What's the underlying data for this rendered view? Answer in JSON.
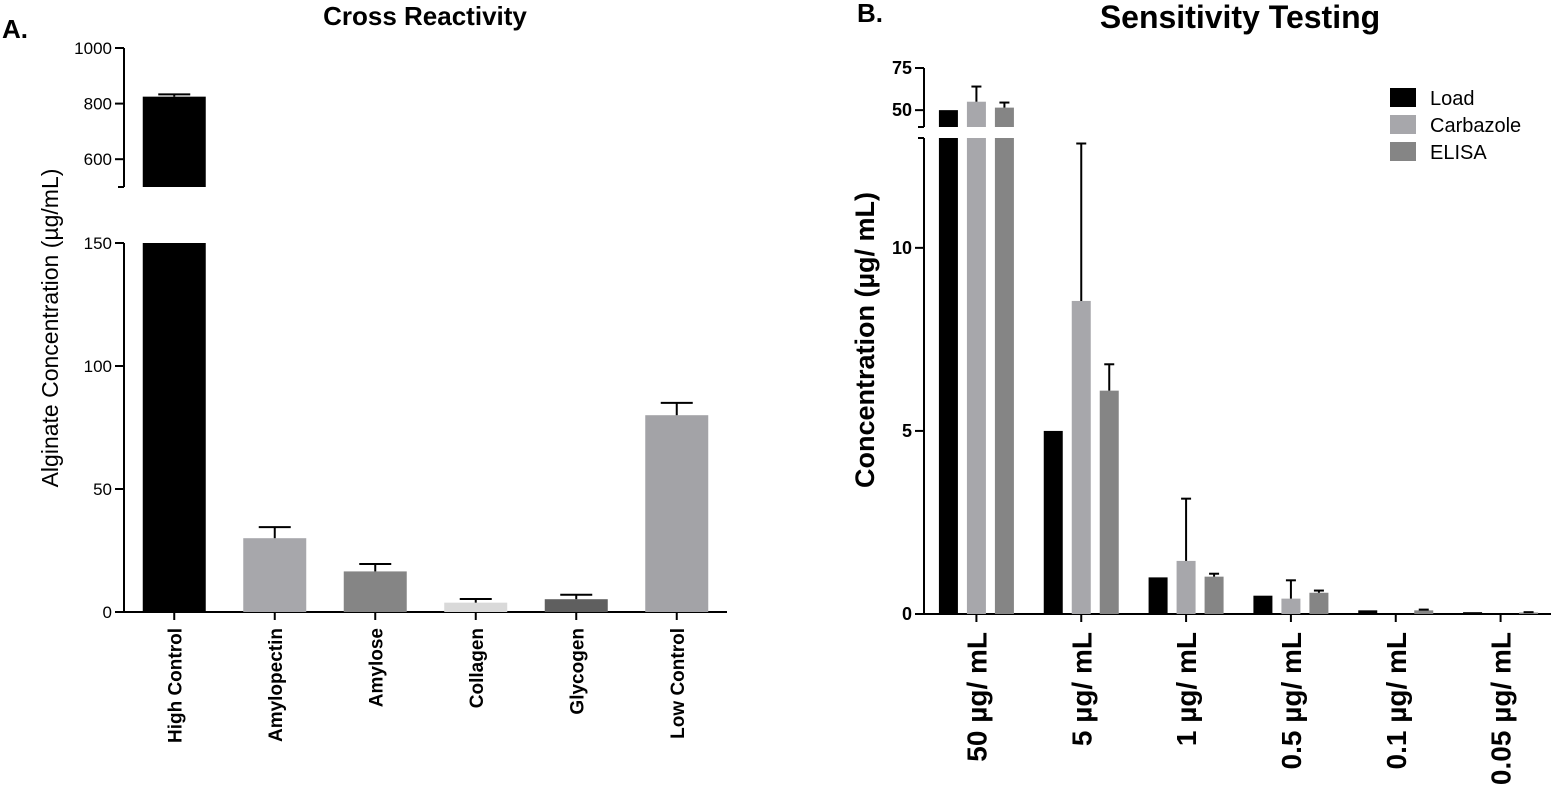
{
  "panel_labels": {
    "a": "A.",
    "b": "B."
  },
  "chart_data": [
    {
      "type": "bar",
      "title": "Cross Reactivity",
      "ylabel": "Alginate Concentration (µg/mL)",
      "xlabel": "",
      "categories": [
        "High Control",
        "Amylopectin",
        "Amylose",
        "Collagen",
        "Glycogen",
        "Low Control"
      ],
      "values": [
        825,
        30,
        16.5,
        3.8,
        5.2,
        80
      ],
      "errors": [
        8,
        4.5,
        3,
        1.5,
        1.8,
        5
      ],
      "colors": [
        "#000000",
        "#a7a7ab",
        "#858585",
        "#d9d9d9",
        "#5f5f5f",
        "#a3a3a7"
      ],
      "y_segments": [
        {
          "range": [
            0,
            150
          ],
          "ticks": [
            0,
            50,
            100,
            150
          ]
        },
        {
          "range": [
            500,
            1000
          ],
          "ticks": [
            600,
            800,
            1000
          ]
        }
      ],
      "ytick_labels": [
        "0",
        "50",
        "100",
        "150",
        "600",
        "800",
        "1000"
      ]
    },
    {
      "type": "bar",
      "title": "Sensitivity Testing",
      "ylabel": "Concentration (µg/ mL)",
      "xlabel": "",
      "categories": [
        "50 µg/ mL",
        "5 µg/ mL",
        "1 µg/ mL",
        "0.5 µg/ mL",
        "0.1 µg/ mL",
        "0.05 µg/ mL"
      ],
      "series": [
        {
          "name": "Load",
          "color": "#000000",
          "values": [
            50,
            5,
            1,
            0.5,
            0.1,
            0.05
          ],
          "errors": [
            0,
            0,
            0,
            0,
            0,
            0
          ]
        },
        {
          "name": "Carbazole",
          "color": "#a7a7ab",
          "values": [
            55,
            8.55,
            1.45,
            0.42,
            0,
            0
          ],
          "errors": [
            9,
            4.3,
            1.7,
            0.5,
            0,
            0
          ]
        },
        {
          "name": "ELISA",
          "color": "#858585",
          "values": [
            51.5,
            6.1,
            1.02,
            0.58,
            0.1,
            0.04
          ],
          "errors": [
            3,
            0.72,
            0.08,
            0.06,
            0.02,
            0.01
          ]
        }
      ],
      "y_segments": [
        {
          "range": [
            0,
            13
          ],
          "ticks": [
            0,
            5,
            10
          ]
        },
        {
          "range": [
            40,
            75
          ],
          "ticks": [
            50,
            75
          ]
        }
      ],
      "ytick_labels": [
        "0",
        "5",
        "10",
        "50",
        "75"
      ],
      "legend_position": "top-right"
    }
  ]
}
